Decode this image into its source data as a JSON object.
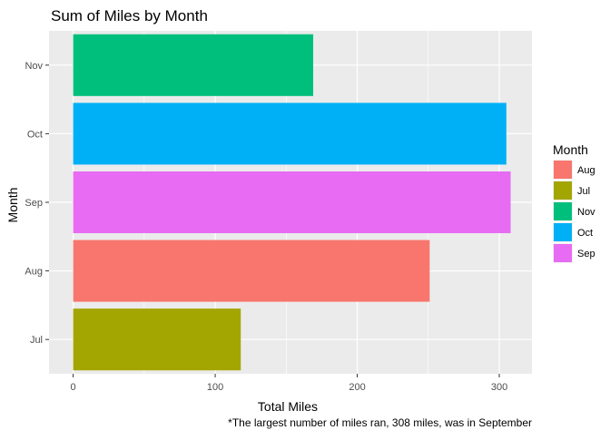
{
  "chart_data": {
    "type": "bar",
    "orientation": "horizontal",
    "title": "Sum of Miles by Month",
    "xlabel": "Total Miles",
    "ylabel": "Month",
    "caption": "*The largest number of miles ran, 308 miles, was in September",
    "categories": [
      "Jul",
      "Aug",
      "Sep",
      "Oct",
      "Nov"
    ],
    "values": [
      118,
      251,
      308,
      305,
      169
    ],
    "bar_colors": {
      "Jul": "#A3A500",
      "Aug": "#F8766D",
      "Sep": "#E76BF3",
      "Oct": "#00B0F6",
      "Nov": "#00BF7D"
    },
    "xlim": [
      -17,
      323
    ],
    "xticks": [
      0,
      100,
      200,
      300
    ],
    "xtick_labels": [
      "0",
      "100",
      "200",
      "300"
    ],
    "grid": true,
    "panel_background": "#EBEBEB",
    "legend": {
      "title": "Month",
      "position": "right",
      "entries": [
        "Aug",
        "Jul",
        "Nov",
        "Oct",
        "Sep"
      ]
    }
  }
}
